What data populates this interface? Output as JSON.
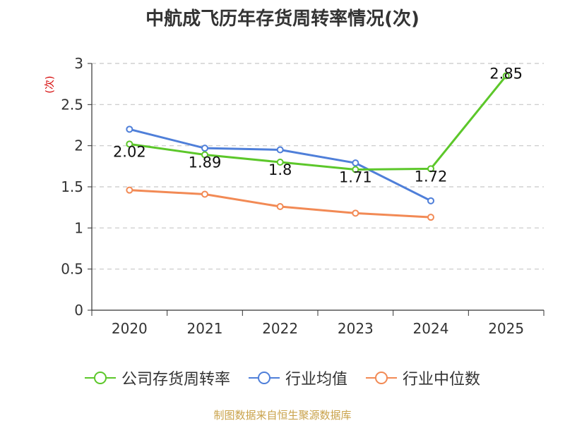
{
  "chart_data": {
    "type": "line",
    "title": "中航成飞历年存货周转率情况(次)",
    "ylabel": "(次)",
    "xlabel": "",
    "categories": [
      "2020",
      "2021",
      "2022",
      "2023",
      "2024",
      "2025"
    ],
    "ylim": [
      0,
      3
    ],
    "yticks": [
      "0",
      "0.5",
      "1",
      "1.5",
      "2",
      "2.5",
      "3"
    ],
    "series": [
      {
        "name": "公司存货周转率",
        "color": "#5cc72a",
        "values": [
          2.02,
          1.89,
          1.8,
          1.71,
          1.72,
          2.85
        ],
        "labels": [
          "2.02",
          "1.89",
          "1.8",
          "1.71",
          "1.72",
          "2.85"
        ]
      },
      {
        "name": "行业均值",
        "color": "#4f7fd9",
        "values": [
          2.2,
          1.97,
          1.95,
          1.79,
          1.33,
          null
        ]
      },
      {
        "name": "行业中位数",
        "color": "#f28a55",
        "values": [
          1.46,
          1.41,
          1.26,
          1.18,
          1.13,
          null
        ]
      }
    ],
    "grid": true,
    "legend": "bottom"
  },
  "source": "制图数据来自恒生聚源数据库"
}
